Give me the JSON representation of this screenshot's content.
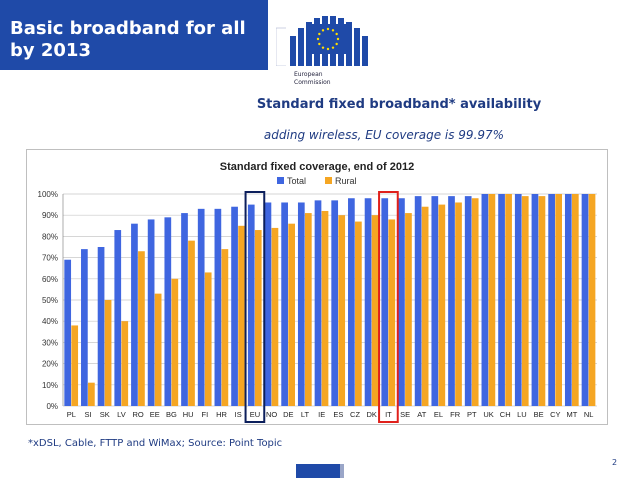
{
  "slide": {
    "title_line1": "Basic broadband for all",
    "title_line2": "by 2013",
    "subtitle": "Standard fixed broadband* availability",
    "subtitle2": "adding wireless, EU coverage is 99.97%",
    "footnote": "*xDSL, Cable, FTTP and WiMax; Source: Point Topic",
    "page_number": "2",
    "logo_line1": "European",
    "logo_line2": "Commission"
  },
  "colors": {
    "title_band": "#1f4aa8",
    "total": "#3f66e0",
    "rural": "#f5a623",
    "highlight_eu": "#0c1f5c",
    "highlight_it": "#e0201b",
    "flag_star": "#ffdd00"
  },
  "chart_data": {
    "type": "bar",
    "title": "Standard fixed coverage, end of 2012",
    "categories": [
      "PL",
      "SI",
      "SK",
      "LV",
      "RO",
      "EE",
      "BG",
      "HU",
      "FI",
      "HR",
      "IS",
      "EU",
      "NO",
      "DE",
      "LT",
      "IE",
      "ES",
      "CZ",
      "DK",
      "IT",
      "SE",
      "AT",
      "EL",
      "FR",
      "PT",
      "UK",
      "CH",
      "LU",
      "BE",
      "CY",
      "MT",
      "NL"
    ],
    "series": [
      {
        "name": "Total",
        "values": [
          69,
          74,
          75,
          83,
          86,
          88,
          89,
          91,
          93,
          93,
          94,
          95,
          96,
          96,
          96,
          97,
          97,
          98,
          98,
          98,
          98,
          99,
          99,
          99,
          99,
          100,
          100,
          100,
          100,
          100,
          100,
          100
        ]
      },
      {
        "name": "Rural",
        "values": [
          38,
          11,
          50,
          40,
          73,
          53,
          60,
          78,
          63,
          74,
          85,
          83,
          84,
          86,
          91,
          92,
          90,
          87,
          90,
          88,
          91,
          94,
          95,
          96,
          98,
          100,
          100,
          99,
          99,
          100,
          100,
          100
        ]
      }
    ],
    "ylim": [
      0,
      100
    ],
    "yticks": [
      "0%",
      "10%",
      "20%",
      "30%",
      "40%",
      "50%",
      "60%",
      "70%",
      "80%",
      "90%",
      "100%"
    ],
    "legend_position": "top-center",
    "grid": true,
    "highlighted": [
      {
        "category": "EU",
        "color": "#0c1f5c"
      },
      {
        "category": "IT",
        "color": "#e0201b"
      }
    ]
  }
}
